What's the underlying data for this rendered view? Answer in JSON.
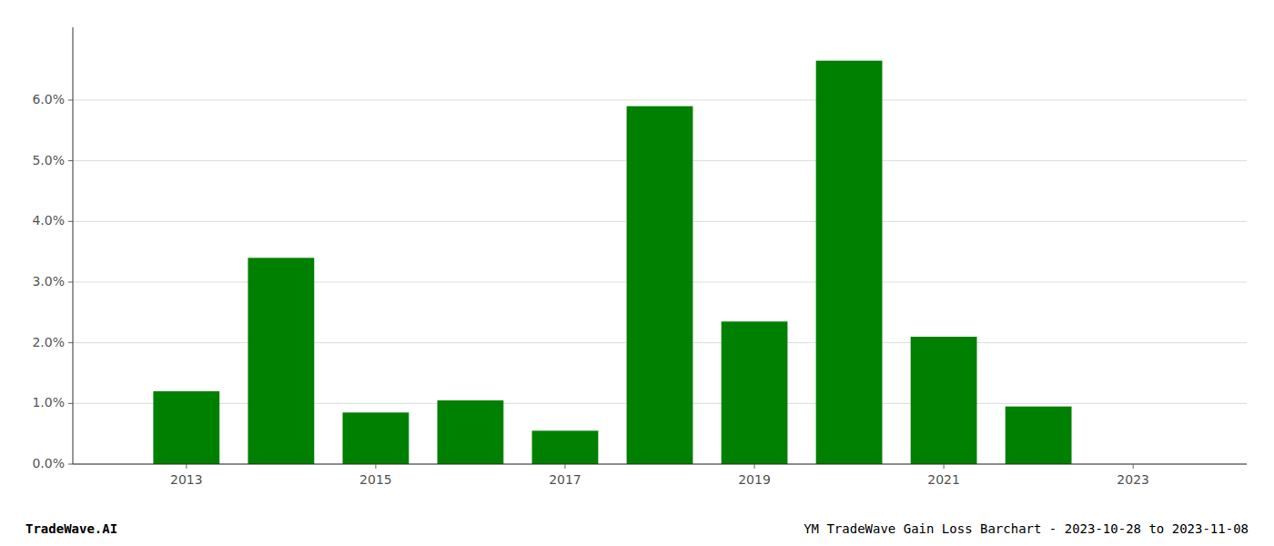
{
  "chart_data": {
    "type": "bar",
    "x": [
      2013,
      2014,
      2015,
      2016,
      2017,
      2018,
      2019,
      2020,
      2021,
      2022,
      2023
    ],
    "values": [
      0.012,
      0.034,
      0.0085,
      0.0105,
      0.0055,
      0.059,
      0.0235,
      0.0665,
      0.021,
      0.0095,
      0.0
    ],
    "color": "#008000",
    "xlim": [
      2011.8,
      2024.2
    ],
    "xticks": [
      2013,
      2015,
      2017,
      2019,
      2021,
      2023
    ],
    "ylim": [
      0,
      0.072
    ],
    "yticks": [
      {
        "value": 0.0,
        "label": "0.0%"
      },
      {
        "value": 0.01,
        "label": "1.0%"
      },
      {
        "value": 0.02,
        "label": "2.0%"
      },
      {
        "value": 0.03,
        "label": "3.0%"
      },
      {
        "value": 0.04,
        "label": "4.0%"
      },
      {
        "value": 0.05,
        "label": "5.0%"
      },
      {
        "value": 0.06,
        "label": "6.0%"
      }
    ],
    "grid": true,
    "annotations": [
      "TradeWave.AI",
      "YM TradeWave Gain Loss Barchart - 2023-10-28 to 2023-11-08"
    ]
  }
}
